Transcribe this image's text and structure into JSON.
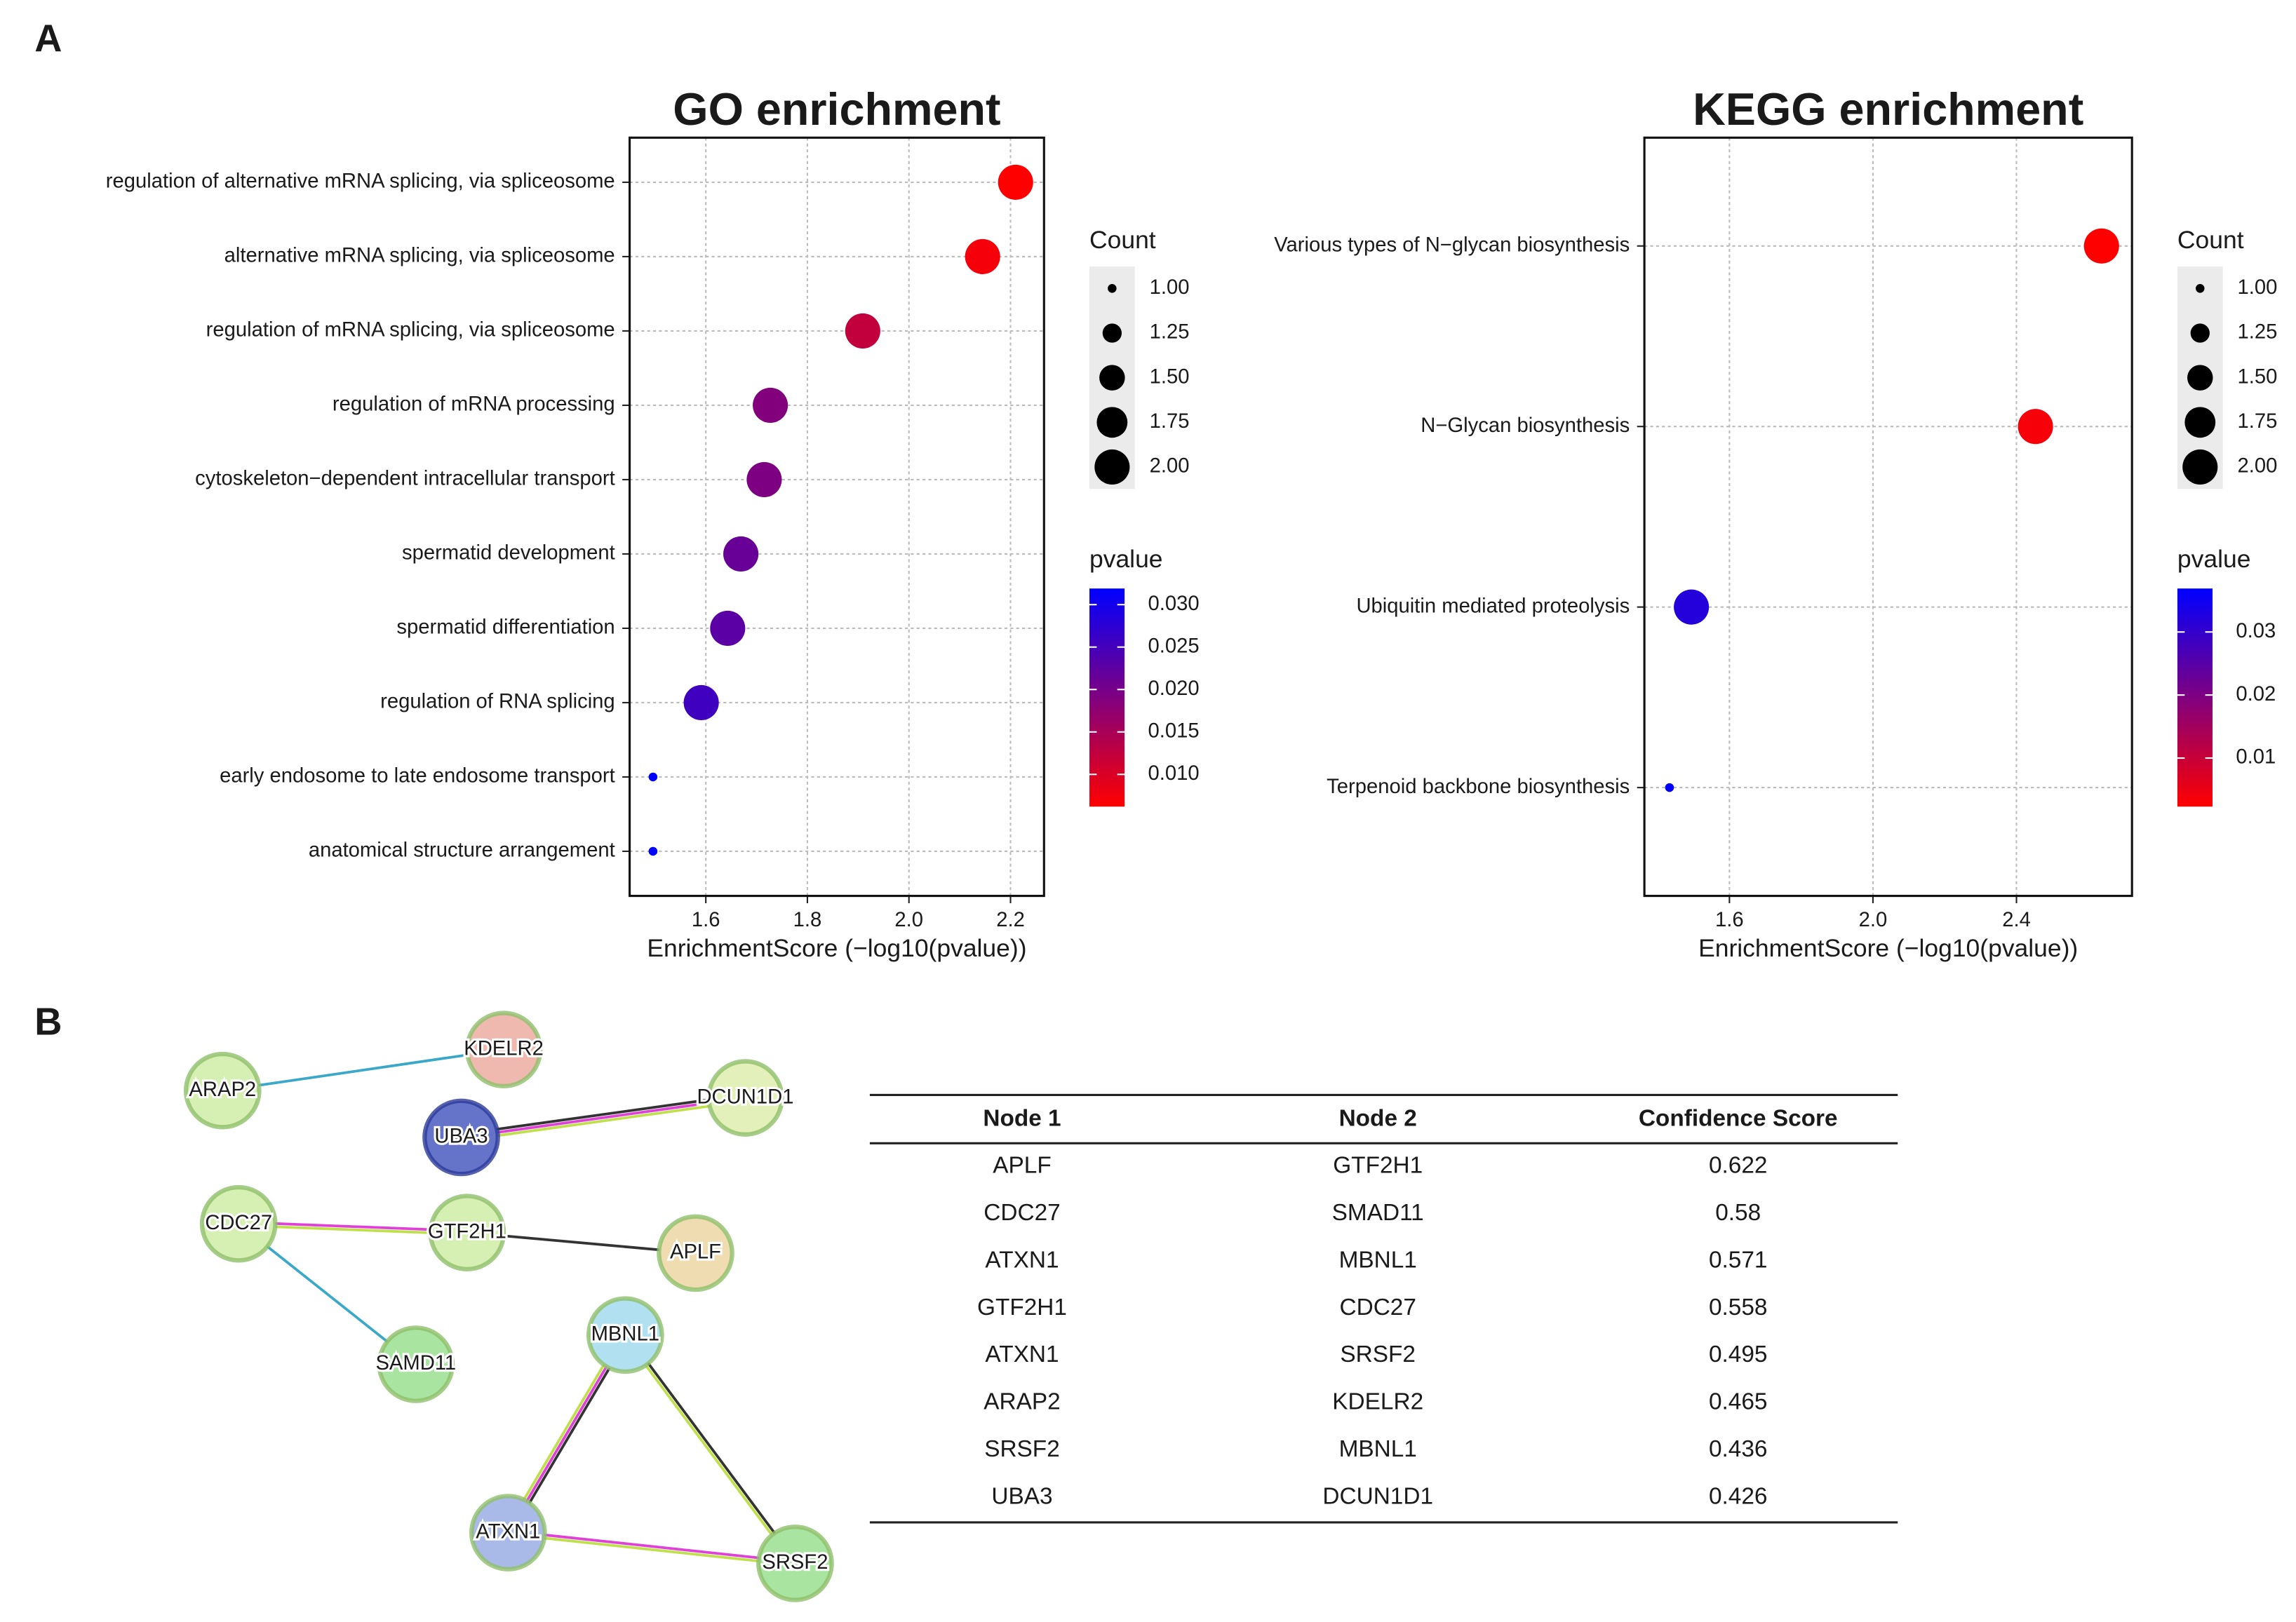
{
  "panel_labels": [
    "A",
    "B"
  ],
  "chart_data": [
    {
      "type": "dot",
      "title": "GO enrichment",
      "x_label": "EnrichmentScore (−log10(pvalue))",
      "categories": [
        "regulation of alternative mRNA splicing, via spliceosome",
        "alternative mRNA splicing, via spliceosome",
        "regulation of mRNA splicing, via spliceosome",
        "regulation of mRNA processing",
        "cytoskeleton−dependent intracellular transport",
        "spermatid development",
        "spermatid differentiation",
        "regulation of RNA splicing",
        "early endosome to late endosome transport",
        "anatomical structure arrangement"
      ],
      "values": [
        2.21,
        2.145,
        1.909,
        1.727,
        1.715,
        1.669,
        1.643,
        1.591,
        1.496,
        1.496
      ],
      "counts": [
        2,
        2,
        2,
        2,
        2,
        2,
        2,
        2,
        1,
        1
      ],
      "pvalues": [
        0.0062,
        0.0072,
        0.0123,
        0.0187,
        0.0193,
        0.0214,
        0.0228,
        0.0256,
        0.0319,
        0.0319
      ],
      "xlim": [
        1.45,
        2.266
      ],
      "xticks": [
        1.6,
        1.8,
        {
          "value": 2,
          "label": "2.0"
        },
        2.2
      ],
      "grid": true,
      "size_legend": {
        "title": "Count",
        "ticks": [
          {
            "value": 1,
            "label": "1.00"
          },
          1.25,
          {
            "value": 1.5,
            "label": "1.50"
          },
          1.75,
          {
            "value": 2,
            "label": "2.00"
          }
        ]
      },
      "color_legend": {
        "title": "pvalue",
        "lim": [
          0.0062,
          0.0319
        ],
        "colors": [
          "#ff0000",
          "#0000ff"
        ],
        "ticks": [
          {
            "value": 0.03,
            "label": "0.030"
          },
          0.025,
          {
            "value": 0.02,
            "label": "0.020"
          },
          0.015,
          {
            "value": 0.01,
            "label": "0.010"
          }
        ]
      }
    },
    {
      "type": "dot",
      "title": "KEGG enrichment",
      "x_label": "EnrichmentScore (−log10(pvalue))",
      "categories": [
        "Various types of N−glycan biosynthesis",
        "N−Glycan biosynthesis",
        "Ubiquitin mediated proteolysis",
        "Terpenoid backbone biosynthesis"
      ],
      "values": [
        2.637,
        2.453,
        1.494,
        1.433
      ],
      "counts": [
        2,
        2,
        2,
        1
      ],
      "pvalues": [
        0.0023,
        0.0035,
        0.032,
        0.0369
      ],
      "xlim": [
        1.363,
        2.722
      ],
      "xticks": [
        1.6,
        {
          "value": 2,
          "label": "2.0"
        },
        2.4
      ],
      "grid": true,
      "size_legend": {
        "title": "Count",
        "ticks": [
          {
            "value": 1,
            "label": "1.00"
          },
          1.25,
          {
            "value": 1.5,
            "label": "1.50"
          },
          1.75,
          {
            "value": 2,
            "label": "2.00"
          }
        ]
      },
      "color_legend": {
        "title": "pvalue",
        "lim": [
          0.0023,
          0.0369
        ],
        "colors": [
          "#ff0000",
          "#0000ff"
        ],
        "ticks": [
          0.03,
          0.02,
          0.01
        ]
      }
    }
  ],
  "network": {
    "nodes": [
      {
        "label": "ARAP2",
        "color": "#d6efb2"
      },
      {
        "label": "KDELR2",
        "color": "#efb9b0"
      },
      {
        "label": "DCUN1D1",
        "color": "#e3f0b9"
      },
      {
        "label": "UBA3",
        "color": "#6573c9"
      },
      {
        "label": "CDC27",
        "color": "#d6efb2"
      },
      {
        "label": "GTF2H1",
        "color": "#d6efb2"
      },
      {
        "label": "APLF",
        "color": "#efdcb0"
      },
      {
        "label": "SAMD11",
        "color": "#a9e5a1"
      },
      {
        "label": "MBNL1",
        "color": "#b1e1f1"
      },
      {
        "label": "ATXN1",
        "color": "#a9b9e8"
      },
      {
        "label": "SRSF2",
        "color": "#a9e5a1"
      }
    ]
  },
  "table": {
    "header": [
      "Node 1",
      "Node 2",
      "Confidence Score"
    ],
    "rows": [
      [
        "APLF",
        "GTF2H1",
        0.622
      ],
      [
        "CDC27",
        "SMAD11",
        0.58
      ],
      [
        "ATXN1",
        "MBNL1",
        0.571
      ],
      [
        "GTF2H1",
        "CDC27",
        0.558
      ],
      [
        "ATXN1",
        "SRSF2",
        0.495
      ],
      [
        "ARAP2",
        "KDELR2",
        0.465
      ],
      [
        "SRSF2",
        "MBNL1",
        0.436
      ],
      [
        "UBA3",
        "DCUN1D1",
        0.426
      ]
    ]
  }
}
